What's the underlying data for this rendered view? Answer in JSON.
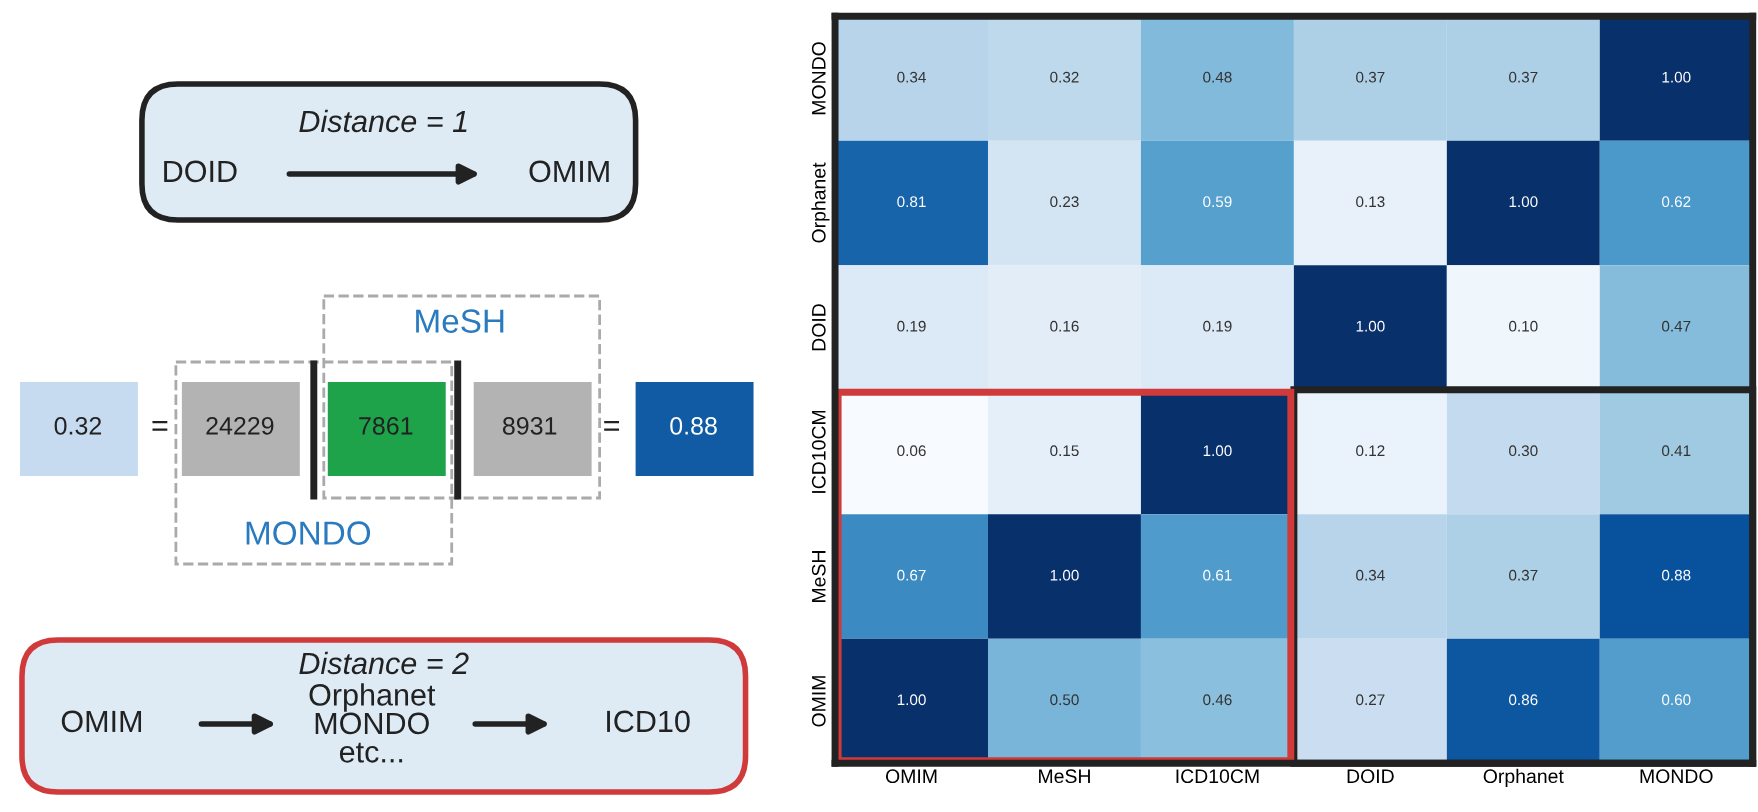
{
  "chart_data": [
    {
      "type": "other",
      "annotations": [
        "Distance = 1",
        "DOID",
        "OMIM",
        "MeSH",
        "0.32",
        "=",
        "24229",
        "7861",
        "8931",
        "=",
        "0.88",
        "MONDO",
        "Distance = 2",
        "OMIM",
        "Orphanet\nMONDO\netc...",
        "ICD10"
      ]
    },
    {
      "type": "heatmap",
      "categories": [
        "OMIM",
        "MeSH",
        "ICD10CM",
        "DOID",
        "Orphanet",
        "MONDO"
      ],
      "y_categories": [
        "MONDO",
        "Orphanet",
        "DOID",
        "ICD10CM",
        "MeSH",
        "OMIM"
      ],
      "cells": [
        [
          0.34,
          0.32,
          0.48,
          0.37,
          0.37,
          1.0
        ],
        [
          0.81,
          0.23,
          0.59,
          0.13,
          1.0,
          0.62
        ],
        [
          0.19,
          0.16,
          0.19,
          1.0,
          0.1,
          0.47
        ],
        [
          0.06,
          0.15,
          1.0,
          0.12,
          0.3,
          0.41
        ],
        [
          0.67,
          1.0,
          0.61,
          0.34,
          0.37,
          0.88
        ],
        [
          1.0,
          0.5,
          0.46,
          0.27,
          0.86,
          0.6
        ]
      ],
      "cell_labels": [
        [
          "0.34",
          "0.32",
          "0.48",
          "0.37",
          "0.37",
          "1.00"
        ],
        [
          "0.81",
          "0.23",
          "0.59",
          "0.13",
          "1.00",
          "0.62"
        ],
        [
          "0.19",
          "0.16",
          "0.19",
          "1.00",
          "0.10",
          "0.47"
        ],
        [
          "0.06",
          "0.15",
          "1.00",
          "0.12",
          "0.30",
          "0.41"
        ],
        [
          "0.67",
          "1.00",
          "0.61",
          "0.34",
          "0.37",
          "0.88"
        ],
        [
          "1.00",
          "0.50",
          "0.46",
          "0.27",
          "0.86",
          "0.60"
        ]
      ]
    }
  ]
}
